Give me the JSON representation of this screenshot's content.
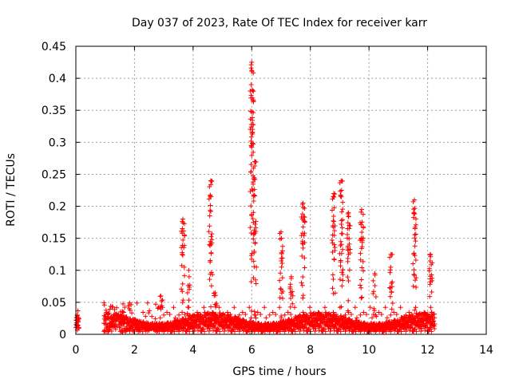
{
  "chart_data": {
    "type": "scatter",
    "title": "Day 037 of 2023, Rate Of TEC Index for receiver karr",
    "xlabel": "GPS time / hours",
    "ylabel": "ROTI / TECUs",
    "xlim": [
      0,
      14
    ],
    "ylim": [
      0,
      0.45
    ],
    "x_ticks": [
      0,
      2,
      4,
      6,
      8,
      10,
      12,
      14
    ],
    "x_tick_labels": [
      "0",
      "2",
      "4",
      "6",
      "8",
      "10",
      "12",
      "14"
    ],
    "y_ticks": [
      0,
      0.05,
      0.1,
      0.15,
      0.2,
      0.25,
      0.3,
      0.35,
      0.4,
      0.45
    ],
    "y_tick_labels": [
      "0",
      "0.05",
      "0.1",
      "0.15",
      "0.2",
      "0.25",
      "0.3",
      "0.35",
      "0.4",
      "0.45"
    ],
    "grid": true,
    "marker": "+",
    "color": "#ff0000",
    "data_time_range_hours": [
      0,
      12.25
    ],
    "data_gap_hours": [
      0.1,
      0.95
    ],
    "peaks": [
      {
        "x": 0.05,
        "y": 0.03
      },
      {
        "x": 1.6,
        "y": 0.035
      },
      {
        "x": 2.9,
        "y": 0.06
      },
      {
        "x": 3.65,
        "y": 0.18
      },
      {
        "x": 3.85,
        "y": 0.1
      },
      {
        "x": 4.6,
        "y": 0.24
      },
      {
        "x": 4.75,
        "y": 0.065
      },
      {
        "x": 6.0,
        "y": 0.425
      },
      {
        "x": 6.1,
        "y": 0.27
      },
      {
        "x": 7.0,
        "y": 0.16
      },
      {
        "x": 7.35,
        "y": 0.09
      },
      {
        "x": 7.75,
        "y": 0.205
      },
      {
        "x": 8.8,
        "y": 0.22
      },
      {
        "x": 9.05,
        "y": 0.24
      },
      {
        "x": 9.3,
        "y": 0.19
      },
      {
        "x": 9.75,
        "y": 0.195
      },
      {
        "x": 10.2,
        "y": 0.095
      },
      {
        "x": 10.75,
        "y": 0.125
      },
      {
        "x": 11.55,
        "y": 0.21
      },
      {
        "x": 12.1,
        "y": 0.125
      }
    ]
  }
}
